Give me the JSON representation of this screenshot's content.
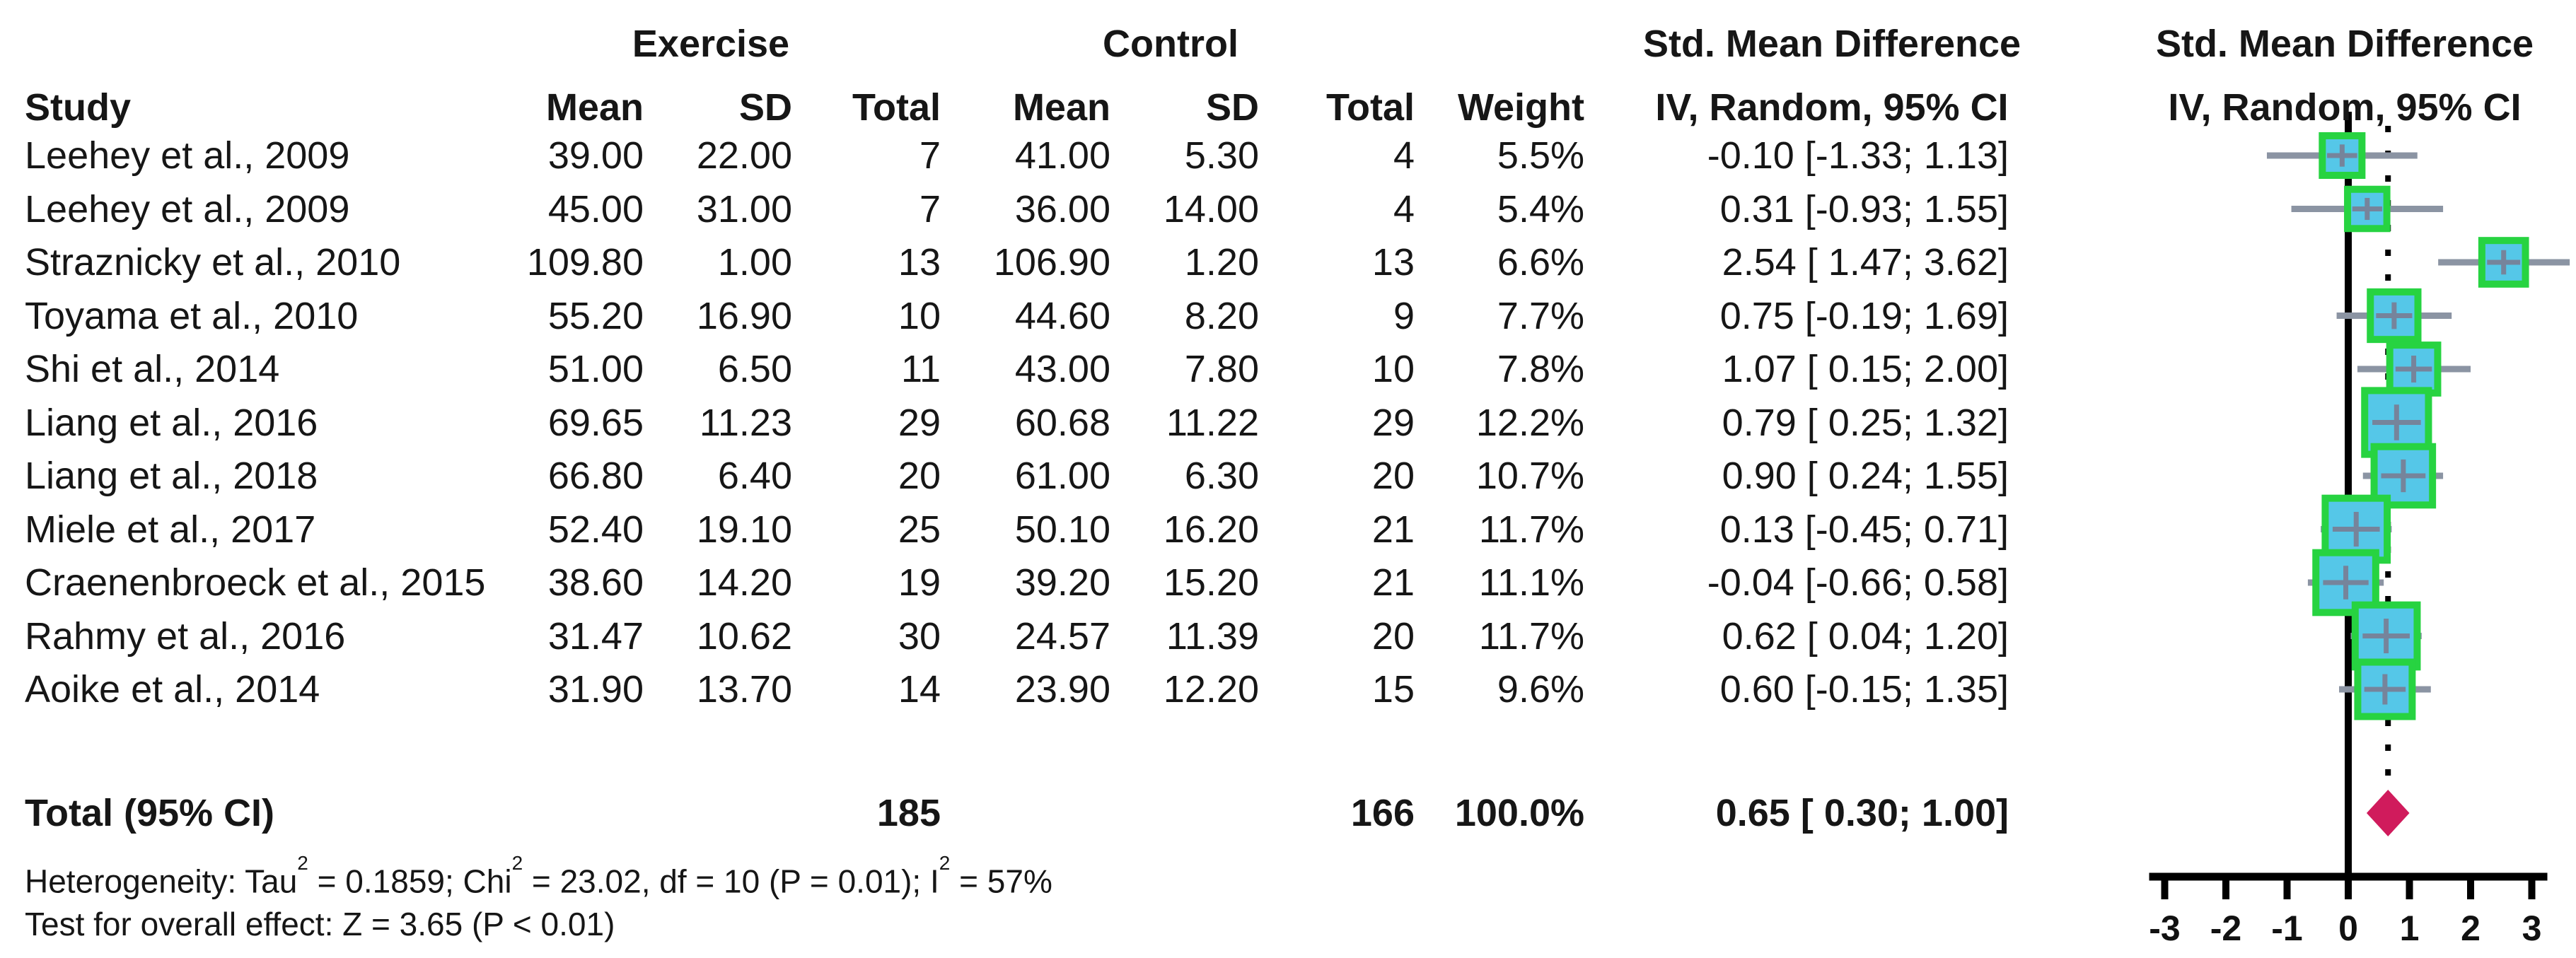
{
  "table": {
    "headers": {
      "group_exercise": "Exercise",
      "group_control": "Control",
      "study": "Study",
      "mean": "Mean",
      "sd": "SD",
      "total": "Total",
      "weight": "Weight",
      "smd_line1": "Std. Mean Difference",
      "smd_line2": "IV, Random, 95% CI"
    },
    "rows": [
      {
        "study": "Leehey et al., 2009",
        "mean_e": "39.00",
        "sd_e": "22.00",
        "total_e": "7",
        "mean_c": "41.00",
        "sd_c": "5.30",
        "total_c": "4",
        "weight": "5.5%",
        "ci": "-0.10 [-1.33; 1.13]"
      },
      {
        "study": "Leehey et al., 2009",
        "mean_e": "45.00",
        "sd_e": "31.00",
        "total_e": "7",
        "mean_c": "36.00",
        "sd_c": "14.00",
        "total_c": "4",
        "weight": "5.4%",
        "ci": "0.31 [-0.93; 1.55]"
      },
      {
        "study": "Straznicky et al., 2010",
        "mean_e": "109.80",
        "sd_e": "1.00",
        "total_e": "13",
        "mean_c": "106.90",
        "sd_c": "1.20",
        "total_c": "13",
        "weight": "6.6%",
        "ci": "2.54 [ 1.47; 3.62]"
      },
      {
        "study": "Toyama et al., 2010",
        "mean_e": "55.20",
        "sd_e": "16.90",
        "total_e": "10",
        "mean_c": "44.60",
        "sd_c": "8.20",
        "total_c": "9",
        "weight": "7.7%",
        "ci": "0.75 [-0.19; 1.69]"
      },
      {
        "study": "Shi et al., 2014",
        "mean_e": "51.00",
        "sd_e": "6.50",
        "total_e": "11",
        "mean_c": "43.00",
        "sd_c": "7.80",
        "total_c": "10",
        "weight": "7.8%",
        "ci": "1.07 [ 0.15; 2.00]"
      },
      {
        "study": "Liang et al., 2016",
        "mean_e": "69.65",
        "sd_e": "11.23",
        "total_e": "29",
        "mean_c": "60.68",
        "sd_c": "11.22",
        "total_c": "29",
        "weight": "12.2%",
        "ci": "0.79 [ 0.25; 1.32]"
      },
      {
        "study": "Liang et al., 2018",
        "mean_e": "66.80",
        "sd_e": "6.40",
        "total_e": "20",
        "mean_c": "61.00",
        "sd_c": "6.30",
        "total_c": "20",
        "weight": "10.7%",
        "ci": "0.90 [ 0.24; 1.55]"
      },
      {
        "study": "Miele et al., 2017",
        "mean_e": "52.40",
        "sd_e": "19.10",
        "total_e": "25",
        "mean_c": "50.10",
        "sd_c": "16.20",
        "total_c": "21",
        "weight": "11.7%",
        "ci": "0.13 [-0.45; 0.71]"
      },
      {
        "study": "Craenenbroeck et al., 2015",
        "mean_e": "38.60",
        "sd_e": "14.20",
        "total_e": "19",
        "mean_c": "39.20",
        "sd_c": "15.20",
        "total_c": "21",
        "weight": "11.1%",
        "ci": "-0.04 [-0.66; 0.58]"
      },
      {
        "study": "Rahmy et al., 2016",
        "mean_e": "31.47",
        "sd_e": "10.62",
        "total_e": "30",
        "mean_c": "24.57",
        "sd_c": "11.39",
        "total_c": "20",
        "weight": "11.7%",
        "ci": "0.62 [ 0.04; 1.20]"
      },
      {
        "study": "Aoike et al., 2014",
        "mean_e": "31.90",
        "sd_e": "13.70",
        "total_e": "14",
        "mean_c": "23.90",
        "sd_c": "12.20",
        "total_c": "15",
        "weight": "9.6%",
        "ci": "0.60 [-0.15; 1.35]"
      }
    ],
    "total_row": {
      "label": "Total (95% CI)",
      "total_e": "185",
      "total_c": "166",
      "weight": "100.0%",
      "ci": "0.65 [ 0.30; 1.00]"
    }
  },
  "footer": {
    "heterogeneity": {
      "pre": "Heterogeneity: Tau",
      "sup1": "2",
      "mid1": " = 0.1859; Chi",
      "sup2": "2",
      "mid2": " = 23.02, df = 10 (P = 0.01); I",
      "sup3": "2",
      "post": " = 57%"
    },
    "overall_effect": "Test for overall effect: Z = 3.65 (P < 0.01)"
  },
  "chart_data": {
    "type": "scatter",
    "subtype": "forest-plot",
    "title": "Std. Mean Difference",
    "xlabel": "IV, Random, 95% CI",
    "xlim": [
      -3,
      3
    ],
    "axis_ticks": [
      -3,
      -2,
      -1,
      0,
      1,
      2,
      3
    ],
    "zero_line": 0,
    "studies": [
      {
        "name": "Leehey et al., 2009",
        "effect": -0.1,
        "lower": -1.33,
        "upper": 1.13,
        "weight": 5.5
      },
      {
        "name": "Leehey et al., 2009",
        "effect": 0.31,
        "lower": -0.93,
        "upper": 1.55,
        "weight": 5.4
      },
      {
        "name": "Straznicky et al., 2010",
        "effect": 2.54,
        "lower": 1.47,
        "upper": 3.62,
        "weight": 6.6
      },
      {
        "name": "Toyama et al., 2010",
        "effect": 0.75,
        "lower": -0.19,
        "upper": 1.69,
        "weight": 7.7
      },
      {
        "name": "Shi et al., 2014",
        "effect": 1.07,
        "lower": 0.15,
        "upper": 2.0,
        "weight": 7.8
      },
      {
        "name": "Liang et al., 2016",
        "effect": 0.79,
        "lower": 0.25,
        "upper": 1.32,
        "weight": 12.2
      },
      {
        "name": "Liang et al., 2018",
        "effect": 0.9,
        "lower": 0.24,
        "upper": 1.55,
        "weight": 10.7
      },
      {
        "name": "Miele et al., 2017",
        "effect": 0.13,
        "lower": -0.45,
        "upper": 0.71,
        "weight": 11.7
      },
      {
        "name": "Craenenbroeck et al., 2015",
        "effect": -0.04,
        "lower": -0.66,
        "upper": 0.58,
        "weight": 11.1
      },
      {
        "name": "Rahmy et al., 2016",
        "effect": 0.62,
        "lower": 0.04,
        "upper": 1.2,
        "weight": 11.7
      },
      {
        "name": "Aoike et al., 2014",
        "effect": 0.6,
        "lower": -0.15,
        "upper": 1.35,
        "weight": 9.6
      }
    ],
    "pooled": {
      "effect": 0.65,
      "lower": 0.3,
      "upper": 1.0,
      "weight": 100.0
    },
    "colors": {
      "square_fill": "#55c7e8",
      "square_border": "#27d341",
      "plus_marker": "#76849b",
      "ci_line": "#8b94a3",
      "diamond": "#d01b5c",
      "axis": "#000000"
    }
  }
}
